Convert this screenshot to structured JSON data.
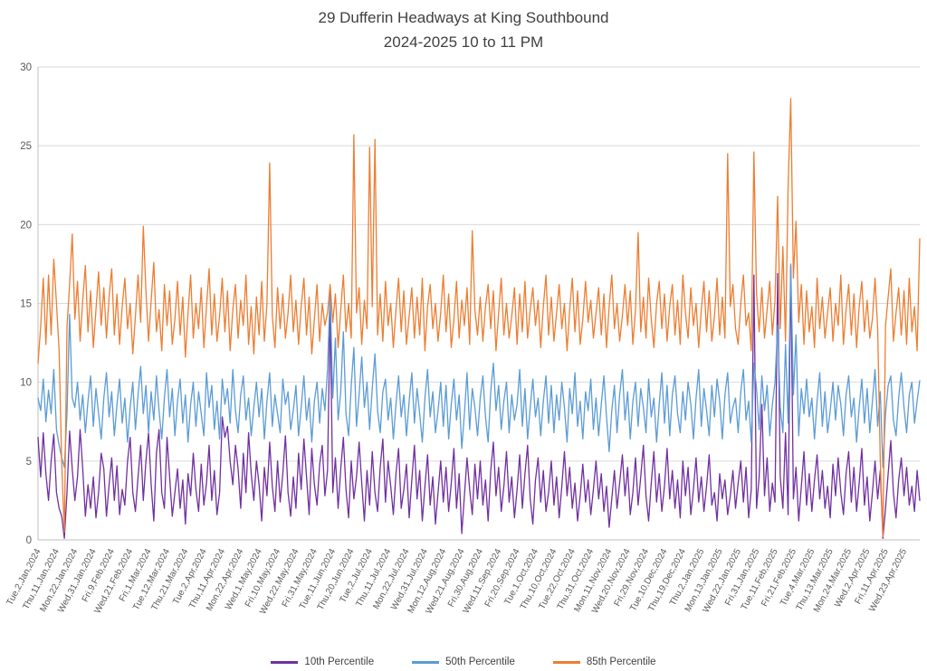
{
  "title": "29 Dufferin Headways at King Southbound",
  "subtitle": "2024-2025 10 to 11 PM",
  "colors": {
    "grid": "#D9D9D9",
    "axis": "#BFBFBF",
    "tick_text": "#595959",
    "title_text": "#404040"
  },
  "chart_data": {
    "type": "line",
    "title": "29 Dufferin Headways at King Southbound",
    "subtitle": "2024-2025 10 to 11 PM",
    "xlabel": "",
    "ylabel": "",
    "ylim": [
      0,
      30
    ],
    "yticks": [
      0,
      5,
      10,
      15,
      20,
      25,
      30
    ],
    "grid": true,
    "legend_position": "bottom",
    "x_tick_interval": 7,
    "x_tick_labels": [
      "Tue,2,Jan,2024",
      "Thu,11,Jan,2024",
      "Mon,22,Jan,2024",
      "Wed,31,Jan,2024",
      "Fri,9,Feb,2024",
      "Wed,21,Feb,2024",
      "Fri,1,Mar,2024",
      "Tue,12,Mar,2024",
      "Thu,21,Mar,2024",
      "Tue,2,Apr,2024",
      "Thu,11,Apr,2024",
      "Mon,22,Apr,2024",
      "Wed,1,May,2024",
      "Fri,10,May,2024",
      "Wed,22,May,2024",
      "Fri,31,May,2024",
      "Tue,11,Jun,2024",
      "Thu,20,Jun,2024",
      "Tue,2,Jul,2024",
      "Thu,11,Jul,2024",
      "Mon,22,Jul,2024",
      "Wed,31,Jul,2024",
      "Mon,12,Aug,2024",
      "Wed,21,Aug,2024",
      "Fri,30,Aug,2024",
      "Wed,11,Sep,2024",
      "Fri,20,Sep,2024",
      "Tue,1,Oct,2024",
      "Thu,10,Oct,2024",
      "Tue,22,Oct,2024",
      "Thu,31,Oct,2024",
      "Mon,11,Nov,2024",
      "Wed,20,Nov,2024",
      "Fri,29,Nov,2024",
      "Tue,10,Dec,2024",
      "Thu,19,Dec,2024",
      "Thu,2,Jan,2025",
      "Mon,13,Jan,2025",
      "Wed,22,Jan,2025",
      "Fri,31,Jan,2025",
      "Tue,11,Feb,2025",
      "Fri,21,Feb,2025",
      "Tue,4,Mar,2025",
      "Thu,13,Mar,2025",
      "Mon,24,Mar,2025",
      "Wed,2,Apr,2025",
      "Fri,11,Apr,2025",
      "Wed,23,Apr,2025"
    ],
    "series": [
      {
        "name": "10th Percentile",
        "color": "#7030A0",
        "values": [
          6.5,
          4.0,
          6.8,
          4.2,
          2.5,
          5.0,
          6.7,
          3.0,
          2.0,
          1.5,
          0.1,
          3.0,
          6.9,
          4.5,
          2.5,
          4.0,
          7.0,
          4.5,
          1.5,
          3.5,
          2.0,
          4.0,
          1.4,
          3.0,
          5.5,
          4.5,
          1.5,
          3.5,
          5.2,
          2.5,
          4.7,
          1.6,
          3.2,
          2.2,
          5.0,
          6.5,
          3.0,
          1.8,
          4.0,
          6.0,
          2.5,
          5.0,
          6.8,
          3.5,
          1.2,
          5.5,
          7.0,
          3.0,
          2.0,
          6.5,
          4.0,
          1.5,
          3.0,
          4.5,
          2.0,
          3.8,
          1.0,
          4.2,
          2.8,
          5.5,
          3.2,
          1.8,
          4.8,
          2.2,
          3.6,
          6.0,
          2.5,
          4.4,
          1.6,
          3.0,
          7.8,
          6.5,
          7.2,
          5.0,
          3.5,
          6.0,
          4.5,
          2.0,
          5.5,
          3.0,
          6.8,
          4.2,
          2.5,
          5.0,
          3.5,
          1.2,
          4.6,
          2.8,
          6.2,
          3.4,
          1.8,
          5.0,
          2.4,
          4.2,
          6.6,
          3.0,
          1.5,
          4.0,
          2.0,
          5.5,
          3.2,
          6.4,
          4.0,
          1.6,
          5.8,
          3.5,
          2.2,
          4.8,
          6.0,
          2.8,
          4.4,
          14.5,
          3.0,
          5.2,
          2.0,
          4.5,
          6.5,
          3.2,
          1.4,
          5.0,
          2.6,
          4.0,
          6.2,
          3.6,
          1.2,
          4.4,
          2.2,
          5.6,
          3.0,
          1.8,
          4.6,
          6.4,
          2.4,
          5.0,
          3.4,
          1.6,
          4.2,
          5.8,
          2.0,
          3.2,
          4.8,
          1.4,
          3.8,
          6.0,
          2.6,
          4.4,
          1.2,
          3.4,
          5.4,
          2.2,
          4.0,
          1.0,
          3.0,
          5.0,
          2.4,
          4.6,
          1.8,
          3.6,
          5.8,
          2.0,
          4.2,
          0.4,
          2.8,
          5.2,
          3.2,
          1.6,
          4.8,
          2.6,
          5.0,
          2.2,
          3.8,
          1.2,
          4.4,
          6.2,
          2.8,
          4.6,
          1.8,
          3.4,
          5.6,
          2.4,
          4.0,
          1.4,
          3.2,
          5.4,
          2.0,
          4.2,
          6.0,
          2.6,
          1.0,
          3.8,
          5.2,
          2.4,
          4.4,
          1.8,
          3.0,
          5.0,
          2.2,
          4.0,
          1.4,
          3.4,
          5.6,
          2.8,
          4.6,
          2.0,
          3.6,
          1.2,
          2.8,
          4.8,
          2.4,
          3.8,
          1.6,
          3.2,
          5.0,
          2.6,
          4.2,
          1.8,
          3.4,
          0.8,
          2.6,
          4.4,
          2.0,
          3.6,
          5.4,
          2.8,
          4.6,
          1.6,
          3.0,
          5.2,
          2.2,
          4.0,
          6.0,
          2.8,
          1.2,
          3.6,
          5.6,
          2.4,
          4.2,
          1.8,
          3.4,
          5.8,
          2.6,
          4.4,
          2.0,
          3.8,
          1.4,
          5.0,
          2.8,
          4.6,
          1.6,
          3.2,
          5.2,
          2.4,
          4.0,
          1.8,
          3.4,
          5.4,
          2.2,
          3.0,
          1.2,
          4.2,
          2.6,
          3.8,
          1.6,
          2.8,
          4.4,
          2.0,
          3.6,
          5.0,
          2.4,
          4.6,
          1.4,
          3.2,
          16.8,
          2.0,
          4.0,
          8.6,
          2.8,
          5.2,
          1.8,
          3.6,
          2.4,
          16.9,
          4.0,
          2.0,
          6.8,
          1.6,
          17.4,
          2.6,
          4.6,
          1.2,
          3.4,
          5.6,
          2.2,
          4.2,
          1.8,
          3.8,
          5.4,
          2.6,
          4.4,
          2.0,
          3.4,
          1.4,
          4.8,
          2.8,
          5.2,
          3.0,
          1.6,
          4.2,
          5.6,
          2.4,
          4.6,
          1.8,
          3.6,
          5.8,
          2.2,
          4.0,
          1.2,
          3.0,
          5.0,
          2.6,
          4.4,
          0.1,
          2.0,
          4.2,
          6.3,
          3.0,
          1.4,
          3.8,
          5.2,
          2.8,
          4.6,
          2.2,
          3.4,
          1.8,
          4.4,
          2.5
        ]
      },
      {
        "name": "50th Percentile",
        "color": "#5B9BD5",
        "values": [
          9.0,
          8.2,
          10.2,
          7.5,
          9.5,
          8.0,
          10.8,
          7.0,
          6.0,
          5.2,
          4.6,
          8.0,
          14.3,
          9.0,
          8.4,
          10.0,
          7.6,
          9.2,
          6.8,
          8.8,
          10.4,
          7.2,
          9.6,
          8.0,
          6.4,
          9.0,
          10.6,
          7.8,
          9.4,
          6.6,
          8.6,
          10.2,
          7.4,
          9.0,
          6.2,
          8.4,
          10.0,
          7.0,
          9.2,
          11.0,
          8.0,
          9.8,
          6.8,
          9.4,
          7.6,
          10.4,
          8.2,
          6.4,
          9.0,
          10.8,
          7.8,
          9.6,
          6.6,
          8.8,
          10.2,
          7.4,
          9.2,
          6.2,
          8.6,
          10.0,
          7.2,
          9.4,
          8.0,
          6.6,
          10.6,
          8.4,
          9.8,
          7.0,
          8.8,
          6.4,
          10.2,
          8.6,
          9.6,
          7.4,
          10.8,
          8.2,
          6.8,
          9.2,
          10.4,
          7.6,
          9.0,
          6.6,
          8.4,
          10.0,
          7.8,
          9.6,
          6.4,
          8.8,
          10.6,
          7.2,
          9.2,
          8.0,
          6.8,
          10.2,
          8.6,
          9.4,
          7.0,
          8.2,
          9.8,
          6.6,
          8.4,
          10.4,
          7.6,
          9.0,
          6.2,
          8.8,
          10.0,
          7.4,
          9.6,
          8.2,
          10.8,
          15.8,
          9.0,
          12.8,
          7.6,
          9.4,
          13.2,
          8.0,
          6.6,
          9.8,
          12.2,
          7.2,
          9.2,
          11.6,
          8.4,
          10.0,
          7.0,
          9.6,
          11.8,
          8.2,
          6.8,
          9.4,
          10.2,
          7.6,
          9.0,
          6.4,
          8.6,
          10.4,
          7.8,
          9.2,
          6.6,
          8.8,
          10.6,
          7.4,
          9.6,
          8.0,
          6.2,
          9.0,
          10.8,
          7.8,
          9.4,
          6.8,
          8.2,
          10.0,
          7.2,
          9.8,
          6.4,
          8.6,
          10.2,
          7.6,
          9.2,
          5.8,
          8.0,
          10.6,
          7.0,
          9.6,
          8.4,
          6.6,
          9.0,
          10.4,
          7.8,
          6.2,
          9.4,
          11.2,
          8.2,
          9.8,
          7.0,
          8.8,
          10.0,
          6.8,
          9.2,
          7.6,
          8.6,
          10.8,
          7.2,
          9.6,
          6.4,
          8.4,
          10.2,
          7.8,
          9.0,
          6.6,
          8.8,
          10.4,
          7.4,
          9.8,
          6.8,
          9.2,
          7.6,
          10.0,
          8.4,
          6.2,
          9.6,
          8.0,
          10.6,
          7.2,
          8.8,
          6.4,
          9.4,
          8.2,
          10.2,
          7.0,
          9.0,
          6.6,
          8.6,
          10.4,
          7.8,
          5.6,
          8.2,
          9.8,
          6.8,
          9.2,
          10.8,
          7.6,
          9.4,
          6.4,
          8.8,
          10.0,
          7.2,
          9.6,
          8.4,
          6.8,
          10.2,
          7.8,
          9.0,
          6.2,
          8.6,
          10.6,
          7.4,
          9.8,
          6.6,
          9.2,
          10.4,
          8.0,
          6.8,
          9.4,
          7.6,
          10.0,
          8.6,
          6.4,
          9.0,
          10.8,
          7.2,
          9.6,
          8.2,
          6.6,
          9.8,
          7.8,
          10.2,
          8.8,
          6.4,
          9.2,
          10.6,
          7.4,
          8.4,
          9.0,
          6.8,
          9.4,
          10.8,
          7.6,
          8.8,
          6.2,
          11.2,
          9.6,
          7.0,
          10.4,
          8.2,
          9.8,
          6.6,
          8.6,
          10.0,
          13.6,
          8.4,
          6.8,
          12.4,
          7.4,
          17.5,
          9.2,
          13.0,
          6.6,
          9.6,
          8.0,
          10.2,
          7.8,
          9.0,
          6.4,
          8.8,
          10.6,
          7.2,
          9.4,
          6.8,
          8.2,
          10.0,
          7.6,
          9.8,
          8.6,
          6.6,
          9.2,
          10.4,
          7.8,
          9.0,
          6.2,
          8.4,
          10.2,
          7.4,
          9.6,
          6.8,
          8.8,
          10.8,
          7.2,
          9.4,
          4.6,
          8.0,
          9.8,
          10.4,
          7.6,
          6.6,
          9.0,
          10.6,
          8.4,
          6.8,
          9.2,
          10.0,
          7.4,
          8.8,
          10.1
        ]
      },
      {
        "name": "85th Percentile",
        "color": "#ED7D31",
        "values": [
          11.2,
          13.5,
          16.6,
          12.4,
          16.8,
          13.0,
          17.8,
          15.0,
          12.0,
          4.8,
          0.5,
          13.5,
          16.2,
          19.4,
          14.0,
          16.4,
          12.6,
          15.2,
          17.4,
          13.2,
          15.8,
          12.2,
          14.6,
          17.0,
          13.6,
          16.0,
          12.8,
          15.4,
          17.2,
          13.0,
          15.6,
          12.4,
          14.8,
          16.6,
          13.4,
          15.0,
          11.8,
          14.2,
          16.8,
          13.8,
          19.9,
          15.8,
          12.6,
          15.2,
          17.6,
          13.2,
          14.6,
          12.0,
          16.2,
          13.6,
          15.8,
          12.4,
          14.0,
          16.4,
          13.0,
          15.4,
          11.6,
          14.4,
          16.8,
          12.8,
          15.0,
          13.4,
          16.0,
          12.2,
          14.8,
          17.2,
          13.0,
          15.6,
          12.6,
          14.2,
          16.6,
          13.2,
          15.8,
          12.0,
          14.6,
          16.2,
          12.8,
          15.2,
          13.6,
          16.8,
          12.4,
          14.8,
          11.8,
          15.4,
          13.0,
          16.4,
          12.6,
          15.0,
          23.9,
          14.2,
          12.2,
          16.0,
          13.4,
          15.6,
          12.8,
          14.4,
          16.8,
          13.2,
          15.2,
          12.4,
          14.8,
          16.6,
          13.0,
          15.4,
          11.8,
          14.0,
          16.2,
          12.6,
          15.0,
          13.6,
          14.4,
          16.2,
          13.8,
          15.6,
          12.2,
          14.6,
          16.8,
          13.2,
          15.0,
          12.8,
          25.7,
          14.4,
          16.0,
          12.4,
          15.2,
          13.4,
          24.9,
          14.8,
          25.4,
          13.0,
          15.6,
          12.6,
          16.4,
          13.6,
          15.0,
          12.2,
          14.6,
          16.6,
          13.2,
          15.8,
          12.4,
          14.2,
          16.0,
          12.8,
          15.4,
          13.0,
          16.6,
          12.0,
          14.8,
          16.2,
          13.4,
          15.0,
          12.6,
          14.4,
          16.8,
          13.2,
          15.6,
          12.2,
          14.0,
          16.4,
          12.8,
          15.2,
          13.6,
          16.0,
          12.4,
          19.6,
          14.6,
          13.0,
          15.4,
          12.6,
          14.8,
          16.2,
          13.4,
          15.8,
          12.0,
          14.4,
          16.6,
          13.0,
          15.0,
          12.8,
          14.2,
          16.0,
          12.4,
          15.6,
          13.2,
          16.4,
          12.8,
          14.6,
          16.0,
          13.6,
          15.2,
          12.2,
          14.8,
          16.8,
          13.0,
          15.4,
          12.6,
          14.4,
          16.2,
          13.4,
          15.0,
          12.0,
          14.6,
          16.6,
          13.2,
          15.8,
          12.4,
          14.0,
          16.4,
          13.8,
          15.2,
          12.8,
          14.4,
          16.0,
          13.0,
          15.6,
          12.2,
          14.8,
          16.8,
          13.4,
          15.0,
          12.6,
          14.2,
          16.2,
          13.6,
          15.8,
          12.4,
          14.6,
          19.5,
          13.2,
          15.4,
          12.8,
          16.6,
          14.0,
          12.2,
          15.0,
          16.4,
          13.4,
          15.6,
          12.6,
          14.8,
          16.2,
          13.0,
          15.2,
          12.4,
          16.8,
          14.4,
          12.8,
          16.0,
          13.6,
          15.0,
          12.2,
          14.6,
          16.4,
          13.2,
          15.8,
          12.6,
          14.2,
          16.6,
          13.0,
          15.4,
          12.8,
          24.5,
          14.8,
          16.2,
          13.4,
          12.4,
          15.0,
          16.8,
          13.6,
          14.4,
          12.0,
          24.6,
          15.6,
          13.2,
          16.0,
          12.8,
          14.6,
          16.4,
          13.0,
          15.2,
          21.8,
          13.4,
          18.6,
          12.6,
          22.4,
          28.0,
          16.6,
          20.2,
          13.8,
          16.2,
          12.4,
          15.8,
          13.2,
          14.8,
          12.2,
          16.6,
          13.4,
          15.4,
          12.8,
          14.4,
          16.0,
          12.6,
          15.0,
          13.6,
          16.8,
          12.4,
          14.6,
          16.2,
          13.0,
          15.6,
          12.2,
          14.8,
          16.4,
          13.2,
          15.2,
          12.8,
          14.0,
          16.6,
          13.4,
          5.0,
          0.2,
          13.6,
          15.4,
          17.2,
          12.6,
          14.4,
          16.0,
          13.0,
          15.8,
          12.4,
          16.6,
          13.2,
          14.8,
          12.0,
          19.1
        ]
      }
    ]
  }
}
